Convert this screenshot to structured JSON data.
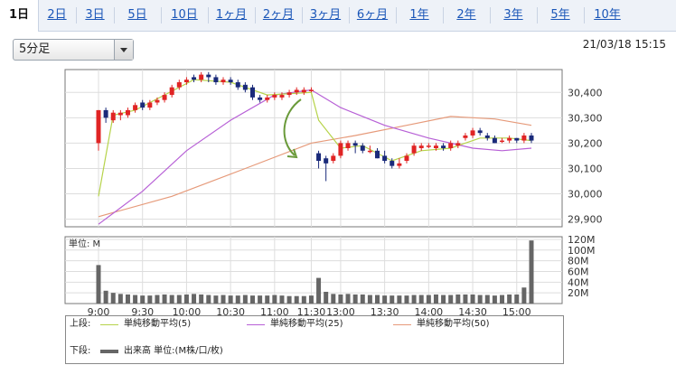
{
  "tabs": [
    {
      "label": "1日",
      "active": true
    },
    {
      "label": "2日"
    },
    {
      "label": "3日"
    },
    {
      "label": "5日"
    },
    {
      "label": "10日"
    },
    {
      "label": "1ヶ月"
    },
    {
      "label": "2ヶ月"
    },
    {
      "label": "3ヶ月"
    },
    {
      "label": "6ヶ月"
    },
    {
      "label": "1年"
    },
    {
      "label": "2年"
    },
    {
      "label": "3年"
    },
    {
      "label": "5年"
    },
    {
      "label": "10年"
    }
  ],
  "interval_select": {
    "value": "5分足"
  },
  "timestamp": "21/03/18 15:15",
  "colors": {
    "up": "#e02424",
    "down": "#1a2a7a",
    "ma5": "#b6d34a",
    "ma25": "#b760d6",
    "ma50": "#e69a7a",
    "volume": "#666666"
  },
  "chart_data": {
    "type": "candlestick",
    "price_axis": {
      "ticks": [
        "30,400",
        "30,300",
        "30,200",
        "30,100",
        "30,000",
        "29,900"
      ],
      "range": [
        29870,
        30490
      ]
    },
    "time_axis": {
      "ticks": [
        "9:00",
        "9:30",
        "10:00",
        "10:30",
        "11:00",
        "11:30",
        "13:00",
        "13:30",
        "14:00",
        "14:30",
        "15:00"
      ]
    },
    "candles": [
      [
        30200,
        30330,
        30170,
        30330
      ],
      [
        30330,
        30300,
        30280,
        30340
      ],
      [
        30290,
        30320,
        30280,
        30330
      ],
      [
        30310,
        30320,
        30290,
        30330
      ],
      [
        30310,
        30330,
        30300,
        30340
      ],
      [
        30330,
        30350,
        30320,
        30360
      ],
      [
        30360,
        30340,
        30330,
        30370
      ],
      [
        30340,
        30360,
        30330,
        30370
      ],
      [
        30360,
        30370,
        30350,
        30380
      ],
      [
        30370,
        30390,
        30360,
        30400
      ],
      [
        30390,
        30420,
        30380,
        30430
      ],
      [
        30420,
        30440,
        30410,
        30450
      ],
      [
        30440,
        30450,
        30430,
        30460
      ],
      [
        30460,
        30450,
        30440,
        30470
      ],
      [
        30450,
        30470,
        30440,
        30480
      ],
      [
        30470,
        30460,
        30440,
        30480
      ],
      [
        30460,
        30440,
        30430,
        30470
      ],
      [
        30440,
        30450,
        30430,
        30460
      ],
      [
        30450,
        30440,
        30430,
        30460
      ],
      [
        30440,
        30420,
        30410,
        30450
      ],
      [
        30430,
        30410,
        30400,
        30440
      ],
      [
        30420,
        30380,
        30370,
        30430
      ],
      [
        30380,
        30370,
        30360,
        30390
      ],
      [
        30370,
        30380,
        30360,
        30390
      ],
      [
        30380,
        30390,
        30370,
        30400
      ],
      [
        30380,
        30390,
        30370,
        30400
      ],
      [
        30390,
        30400,
        30380,
        30410
      ],
      [
        30400,
        30410,
        30390,
        30420
      ],
      [
        30400,
        30410,
        30390,
        30420
      ],
      [
        30410,
        30410,
        30400,
        30420
      ],
      [
        30160,
        30130,
        30100,
        30170
      ],
      [
        30140,
        30120,
        30050,
        30150
      ],
      [
        30130,
        30150,
        30120,
        30160
      ],
      [
        30150,
        30200,
        30140,
        30210
      ],
      [
        30180,
        30200,
        30170,
        30210
      ],
      [
        30200,
        30190,
        30160,
        30210
      ],
      [
        30190,
        30170,
        30160,
        30200
      ],
      [
        30170,
        30170,
        30160,
        30190
      ],
      [
        30170,
        30140,
        30140,
        30180
      ],
      [
        30150,
        30130,
        30120,
        30170
      ],
      [
        30130,
        30110,
        30100,
        30140
      ],
      [
        30110,
        30120,
        30100,
        30140
      ],
      [
        30130,
        30150,
        30120,
        30160
      ],
      [
        30160,
        30190,
        30150,
        30200
      ],
      [
        30180,
        30190,
        30170,
        30200
      ],
      [
        30190,
        30190,
        30180,
        30200
      ],
      [
        30180,
        30190,
        30170,
        30200
      ],
      [
        30190,
        30180,
        30170,
        30200
      ],
      [
        30180,
        30200,
        30170,
        30210
      ],
      [
        30190,
        30200,
        30180,
        30210
      ],
      [
        30220,
        30230,
        30210,
        30240
      ],
      [
        30230,
        30250,
        30220,
        30260
      ],
      [
        30250,
        30240,
        30230,
        30260
      ],
      [
        30230,
        30220,
        30210,
        30240
      ],
      [
        30220,
        30200,
        30200,
        30230
      ],
      [
        30210,
        30210,
        30200,
        30220
      ],
      [
        30210,
        30220,
        30200,
        30230
      ],
      [
        30220,
        30210,
        30200,
        30220
      ],
      [
        30210,
        30230,
        30200,
        30240
      ],
      [
        30230,
        30210,
        30200,
        30240
      ]
    ],
    "series": [
      {
        "name": "単純移動平均(5)"
      },
      {
        "name": "単純移動平均(25)"
      },
      {
        "name": "単純移動平均(50)"
      }
    ],
    "ma_paths": {
      "ma5": [
        [
          0,
          29990
        ],
        [
          1,
          30150
        ],
        [
          2,
          30310
        ],
        [
          5,
          30330
        ],
        [
          9,
          30390
        ],
        [
          13,
          30450
        ],
        [
          18,
          30440
        ],
        [
          23,
          30390
        ],
        [
          29,
          30400
        ],
        [
          30,
          30290
        ],
        [
          33,
          30180
        ],
        [
          36,
          30190
        ],
        [
          40,
          30130
        ],
        [
          44,
          30170
        ],
        [
          48,
          30180
        ],
        [
          52,
          30220
        ],
        [
          56,
          30220
        ],
        [
          59,
          30210
        ]
      ],
      "ma25": [
        [
          0,
          29880
        ],
        [
          6,
          30010
        ],
        [
          12,
          30170
        ],
        [
          18,
          30290
        ],
        [
          24,
          30390
        ],
        [
          29,
          30410
        ],
        [
          33,
          30340
        ],
        [
          39,
          30270
        ],
        [
          45,
          30220
        ],
        [
          51,
          30180
        ],
        [
          55,
          30170
        ],
        [
          59,
          30180
        ]
      ],
      "ma50": [
        [
          0,
          29910
        ],
        [
          10,
          29990
        ],
        [
          20,
          30100
        ],
        [
          29,
          30200
        ],
        [
          35,
          30230
        ],
        [
          42,
          30270
        ],
        [
          48,
          30305
        ],
        [
          54,
          30295
        ],
        [
          59,
          30270
        ]
      ]
    },
    "volume_axis": {
      "ticks": [
        "120M",
        "100M",
        "80M",
        "60M",
        "40M",
        "20M"
      ],
      "range": [
        0,
        125
      ]
    },
    "volume_unit_label": "単位: M",
    "volumes": [
      72,
      24,
      20,
      18,
      17,
      16,
      15,
      15,
      16,
      17,
      16,
      16,
      17,
      18,
      17,
      16,
      15,
      16,
      15,
      15,
      16,
      15,
      15,
      15,
      16,
      15,
      14,
      14,
      14,
      15,
      48,
      22,
      18,
      17,
      18,
      17,
      17,
      16,
      16,
      15,
      15,
      15,
      15,
      16,
      16,
      16,
      17,
      16,
      16,
      17,
      17,
      17,
      16,
      16,
      15,
      16,
      17,
      17,
      30,
      118
    ]
  },
  "legend": {
    "upper_label": "上段:",
    "lower_label": "下段:",
    "lower_text": "出来高 単位:(M株/口/枚)"
  }
}
